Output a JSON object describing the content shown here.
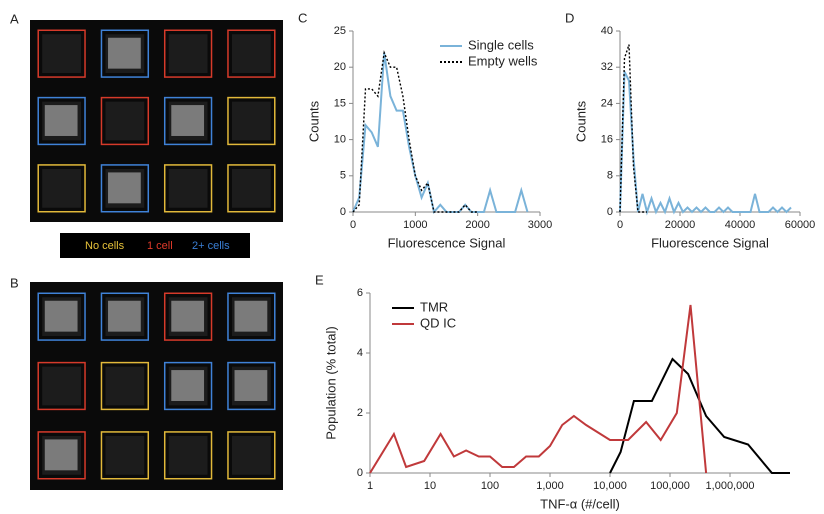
{
  "images": [
    {
      "panel_label": "A"
    },
    {
      "panel_label": "B"
    }
  ],
  "image_legend": [
    "No cells",
    "1 cell",
    "2+ cells"
  ],
  "chart_data": [
    {
      "type": "line",
      "panel_label": "C",
      "xlabel": "Fluorescence Signal",
      "ylabel": "Counts",
      "xlim": [
        0,
        3000
      ],
      "xticks": [
        0,
        1000,
        2000,
        3000
      ],
      "ylim": [
        0,
        25
      ],
      "yticks": [
        0,
        5,
        10,
        15,
        20,
        25
      ],
      "legend": "upper right",
      "series": [
        {
          "name": "Single cells",
          "color": "#7ab3d9",
          "style": "solid",
          "x": [
            0,
            100,
            200,
            300,
            400,
            500,
            600,
            700,
            800,
            900,
            1000,
            1100,
            1200,
            1300,
            1400,
            1500,
            1600,
            1700,
            1800,
            1900,
            2000,
            2100,
            2200,
            2300,
            2400,
            2500,
            2600,
            2700,
            2800
          ],
          "values": [
            0,
            2,
            12,
            11,
            9,
            22,
            16,
            14,
            14,
            9,
            5,
            2,
            4,
            0,
            1,
            0,
            0,
            0,
            1,
            0,
            0,
            0,
            3,
            0,
            0,
            0,
            0,
            3,
            0
          ]
        },
        {
          "name": "Empty wells",
          "color": "#000000",
          "style": "dotted",
          "x": [
            0,
            100,
            200,
            300,
            400,
            500,
            600,
            700,
            800,
            900,
            1000,
            1100,
            1200,
            1300,
            1400,
            1500,
            1600,
            1700,
            1800,
            1900,
            2000
          ],
          "values": [
            0,
            1,
            17,
            17,
            16,
            22,
            20,
            20,
            16,
            10,
            5,
            3,
            4,
            0,
            0,
            0,
            0,
            0,
            1,
            0,
            0
          ]
        }
      ]
    },
    {
      "type": "line",
      "panel_label": "D",
      "xlabel": "Fluorescence Signal",
      "ylabel": "Counts",
      "xlim": [
        0,
        60000
      ],
      "xticks": [
        0,
        20000,
        40000,
        60000
      ],
      "ylim": [
        0,
        40
      ],
      "yticks": [
        0,
        8,
        16,
        24,
        32,
        40
      ],
      "series": [
        {
          "name": "Single cells",
          "color": "#7ab3d9",
          "style": "solid",
          "x": [
            0,
            1500,
            3000,
            4500,
            6000,
            7500,
            9000,
            10500,
            12000,
            13500,
            15000,
            16500,
            18000,
            19500,
            21000,
            22500,
            24000,
            25500,
            27000,
            28500,
            30000,
            31500,
            33000,
            34500,
            36000,
            37500,
            39000,
            40500,
            42000,
            43500,
            45000,
            46500,
            48000,
            49500,
            51000,
            52500,
            54000,
            55500,
            57000
          ],
          "values": [
            0,
            31,
            29,
            12,
            0,
            4,
            0,
            3,
            0,
            2,
            0,
            3,
            0,
            2,
            0,
            1,
            0,
            1,
            0,
            1,
            0,
            0,
            1,
            0,
            1,
            0,
            0,
            0,
            0,
            0,
            4,
            0,
            0,
            0,
            1,
            0,
            1,
            0,
            1
          ]
        },
        {
          "name": "Empty wells",
          "color": "#000000",
          "style": "dotted",
          "x": [
            0,
            1500,
            3000,
            4500,
            6000,
            7500,
            9000
          ],
          "values": [
            0,
            34,
            37,
            10,
            0,
            0,
            0
          ]
        }
      ]
    },
    {
      "type": "line",
      "panel_label": "E",
      "xlabel": "TNF-α (#/cell)",
      "ylabel": "Population (% total)",
      "xscale": "log",
      "xlim": [
        1,
        10000000
      ],
      "xticks": [
        1,
        10,
        100,
        {
          "value": 1000,
          "label": "1,000"
        },
        {
          "value": 10000,
          "label": "10,000"
        },
        {
          "value": 100000,
          "label": "100,000"
        },
        {
          "value": 1000000,
          "label": "1,000,000"
        }
      ],
      "ylim": [
        0,
        6
      ],
      "yticks": [
        0,
        2,
        4,
        6
      ],
      "legend": "upper left",
      "series": [
        {
          "name": "TMR",
          "color": "#000000",
          "style": "solid",
          "x": [
            10000,
            15000,
            25000,
            50000,
            110000,
            200000,
            400000,
            800000,
            2000000,
            5000000,
            10000000
          ],
          "values": [
            0,
            0.7,
            2.4,
            2.4,
            3.8,
            3.3,
            1.9,
            1.2,
            0.95,
            0,
            0
          ]
        },
        {
          "name": "QD IC",
          "color": "#c0393b",
          "style": "solid",
          "x": [
            1,
            2.5,
            4,
            8,
            15,
            25,
            40,
            65,
            100,
            160,
            250,
            400,
            650,
            1000,
            1600,
            2500,
            4000,
            10000,
            20000,
            40000,
            70000,
            130000,
            220000,
            400000
          ],
          "values": [
            0,
            1.3,
            0.2,
            0.4,
            1.3,
            0.55,
            0.75,
            0.55,
            0.55,
            0.2,
            0.2,
            0.55,
            0.55,
            0.9,
            1.6,
            1.9,
            1.6,
            1.1,
            1.1,
            1.7,
            1.1,
            2.0,
            5.6,
            0
          ]
        }
      ]
    }
  ]
}
